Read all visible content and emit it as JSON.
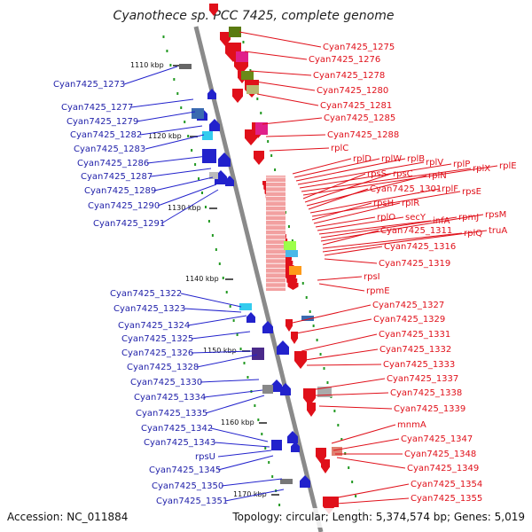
{
  "title": "Cyanothece sp. PCC 7425, complete genome",
  "footer": {
    "accession": "Accession: NC_011884",
    "topology": "Topology: circular; Length: 5,374,574 bp; Genes: 5,019"
  },
  "scale_labels": [
    "1110 kbp",
    "1120 kbp",
    "1130 kbp",
    "1140 kbp",
    "1150 kbp",
    "1160 kbp",
    "1170 kbp"
  ],
  "left_labels": [
    "Cyan7425_1273",
    "Cyan7425_1277",
    "Cyan7425_1279",
    "Cyan7425_1282",
    "Cyan7425_1283",
    "Cyan7425_1286",
    "Cyan7425_1287",
    "Cyan7425_1289",
    "Cyan7425_1290",
    "Cyan7425_1291",
    "Cyan7425_1322",
    "Cyan7425_1323",
    "Cyan7425_1324",
    "Cyan7425_1325",
    "Cyan7425_1326",
    "Cyan7425_1328",
    "Cyan7425_1330",
    "Cyan7425_1334",
    "Cyan7425_1335",
    "Cyan7425_1342",
    "Cyan7425_1343",
    "rpsU",
    "Cyan7425_1345",
    "Cyan7425_1350",
    "Cyan7425_1351"
  ],
  "right_labels": [
    "Cyan7425_1275",
    "Cyan7425_1276",
    "Cyan7425_1278",
    "Cyan7425_1280",
    "Cyan7425_1281",
    "Cyan7425_1285",
    "Cyan7425_1288",
    "rplC",
    "rplD",
    "rplW",
    "rplB",
    "rplV",
    "rplP",
    "rplX",
    "rplE",
    "rpsS",
    "rpsC",
    "rplN",
    "Cyan7425_1301",
    "rplF",
    "rpsE",
    "rpsH",
    "rplR",
    "rplO",
    "secY",
    "infA",
    "rpmJ",
    "rpsM",
    "Cyan7425_1311",
    "rplQ",
    "truA",
    "Cyan7425_1316",
    "Cyan7425_1319",
    "rpsI",
    "rpmE",
    "Cyan7425_1327",
    "Cyan7425_1329",
    "Cyan7425_1331",
    "Cyan7425_1332",
    "Cyan7425_1333",
    "Cyan7425_1337",
    "Cyan7425_1338",
    "Cyan7425_1339",
    "mnmA",
    "Cyan7425_1347",
    "Cyan7425_1348",
    "Cyan7425_1349",
    "Cyan7425_1354",
    "Cyan7425_1355"
  ],
  "colors": {
    "forward_strand": "#2222cc",
    "reverse_strand": "#e0101a",
    "backbone": "#8c8c8c",
    "tick": "#229922"
  }
}
